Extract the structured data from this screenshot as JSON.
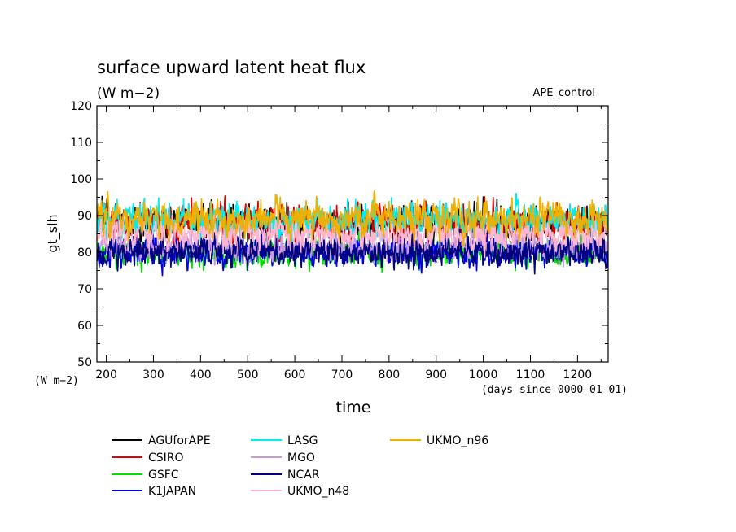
{
  "chart_data": {
    "type": "line",
    "title": "surface upward latent heat flux",
    "subtitle": "(W m−2)",
    "run_label": "APE_control",
    "xlabel": "time",
    "ylabel": "gt_slh",
    "x_unit_label": "(W m−2)",
    "x_origin_label": "(days since 0000-01-01)",
    "xlim": [
      180,
      1265
    ],
    "ylim": [
      50,
      120
    ],
    "x_major_ticks": [
      200,
      300,
      400,
      500,
      600,
      700,
      800,
      900,
      1000,
      1100,
      1200
    ],
    "x_tick_labels": [
      "200",
      "300",
      "400",
      "500",
      "600",
      "700",
      "800",
      "900",
      "1000",
      "1100",
      "1200"
    ],
    "y_major_ticks": [
      50,
      60,
      70,
      80,
      90,
      100,
      110,
      120
    ],
    "y_tick_labels": [
      "50",
      "60",
      "70",
      "80",
      "90",
      "100",
      "110",
      "120"
    ],
    "grid": false,
    "legend_position": "below",
    "series": [
      {
        "name": "AGUforAPE",
        "color": "#000000",
        "mean": 88,
        "amplitude": 4.5,
        "seed": 11
      },
      {
        "name": "CSIRO",
        "color": "#e00000",
        "mean": 88,
        "amplitude": 4.5,
        "seed": 23
      },
      {
        "name": "GSFC",
        "color": "#00dd00",
        "mean": 80,
        "amplitude": 3.5,
        "seed": 37
      },
      {
        "name": "K1JAPAN",
        "color": "#0000e0",
        "mean": 80,
        "amplitude": 3.5,
        "seed": 41
      },
      {
        "name": "LASG",
        "color": "#00eeee",
        "mean": 89,
        "amplitude": 4.5,
        "seed": 53
      },
      {
        "name": "MGO",
        "color": "#cc99dd",
        "mean": 81,
        "amplitude": 3.5,
        "seed": 67
      },
      {
        "name": "NCAR",
        "color": "#000080",
        "mean": 80,
        "amplitude": 3.5,
        "seed": 79
      },
      {
        "name": "UKMO_n48",
        "color": "#ffb6d0",
        "mean": 85,
        "amplitude": 3.5,
        "seed": 83
      },
      {
        "name": "UKMO_n96",
        "color": "#f0b000",
        "mean": 89,
        "amplitude": 4.5,
        "seed": 97
      }
    ]
  }
}
